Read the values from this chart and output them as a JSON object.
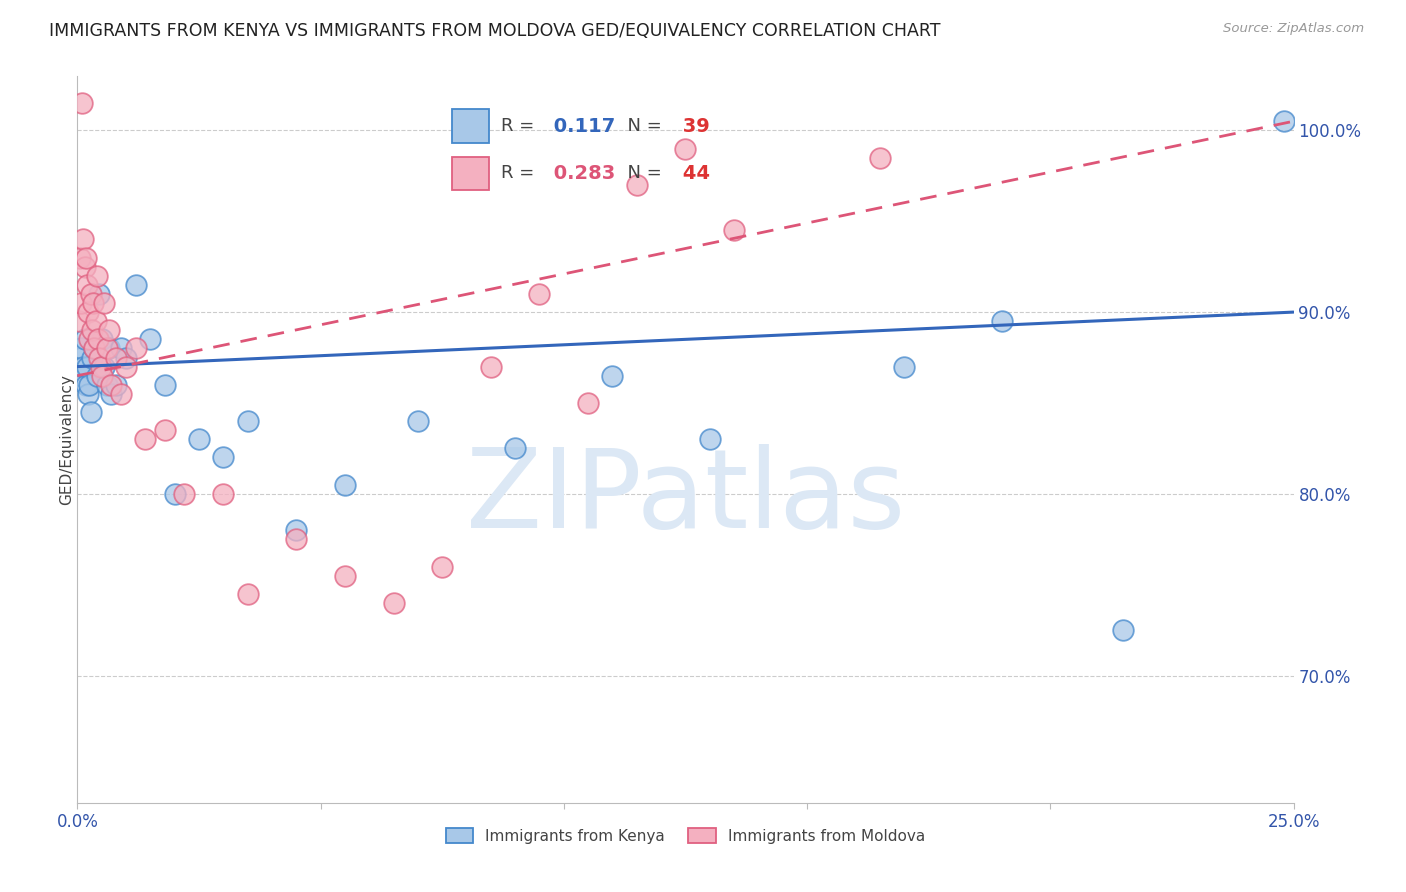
{
  "title": "IMMIGRANTS FROM KENYA VS IMMIGRANTS FROM MOLDOVA GED/EQUIVALENCY CORRELATION CHART",
  "source": "Source: ZipAtlas.com",
  "ylabel": "GED/Equivalency",
  "xmin": 0.0,
  "xmax": 25.0,
  "ymin": 63.0,
  "ymax": 103.0,
  "kenya_R": 0.117,
  "kenya_N": 39,
  "moldova_R": 0.283,
  "moldova_N": 44,
  "kenya_color": "#a8c8e8",
  "moldova_color": "#f4b0c0",
  "kenya_edge_color": "#4488cc",
  "moldova_edge_color": "#e06080",
  "kenya_line_color": "#3366bb",
  "moldova_line_color": "#dd5577",
  "watermark": "ZIPatlas",
  "watermark_color": "#dce8f5",
  "legend_R_color": "#3366bb",
  "legend_N_color": "#dd3333",
  "kenya_x": [
    0.05,
    0.08,
    0.1,
    0.12,
    0.15,
    0.18,
    0.2,
    0.22,
    0.25,
    0.28,
    0.3,
    0.35,
    0.4,
    0.45,
    0.5,
    0.55,
    0.6,
    0.65,
    0.7,
    0.8,
    0.9,
    1.0,
    1.2,
    1.5,
    1.8,
    2.0,
    2.5,
    3.0,
    3.5,
    4.5,
    5.5,
    7.0,
    9.0,
    11.0,
    13.0,
    17.0,
    19.0,
    21.5,
    24.8
  ],
  "kenya_y": [
    87.5,
    88.0,
    86.5,
    87.0,
    88.5,
    86.0,
    87.0,
    85.5,
    86.0,
    84.5,
    87.5,
    88.0,
    86.5,
    91.0,
    88.5,
    87.0,
    86.0,
    88.0,
    85.5,
    86.0,
    88.0,
    87.5,
    91.5,
    88.5,
    86.0,
    80.0,
    83.0,
    82.0,
    84.0,
    78.0,
    80.5,
    84.0,
    82.5,
    86.5,
    83.0,
    87.0,
    89.5,
    72.5,
    100.5
  ],
  "moldova_x": [
    0.04,
    0.06,
    0.08,
    0.1,
    0.12,
    0.15,
    0.18,
    0.2,
    0.22,
    0.25,
    0.28,
    0.3,
    0.32,
    0.35,
    0.38,
    0.4,
    0.42,
    0.45,
    0.48,
    0.5,
    0.55,
    0.6,
    0.65,
    0.7,
    0.8,
    0.9,
    1.0,
    1.2,
    1.4,
    1.8,
    2.2,
    3.0,
    3.5,
    4.5,
    5.5,
    6.5,
    7.5,
    8.5,
    9.5,
    10.5,
    11.5,
    12.5,
    13.5,
    16.5
  ],
  "moldova_y": [
    89.5,
    93.0,
    90.5,
    101.5,
    94.0,
    92.5,
    93.0,
    91.5,
    90.0,
    88.5,
    91.0,
    89.0,
    90.5,
    88.0,
    89.5,
    92.0,
    88.5,
    87.5,
    87.0,
    86.5,
    90.5,
    88.0,
    89.0,
    86.0,
    87.5,
    85.5,
    87.0,
    88.0,
    83.0,
    83.5,
    80.0,
    80.0,
    74.5,
    77.5,
    75.5,
    74.0,
    76.0,
    87.0,
    91.0,
    85.0,
    97.0,
    99.0,
    94.5,
    98.5
  ]
}
